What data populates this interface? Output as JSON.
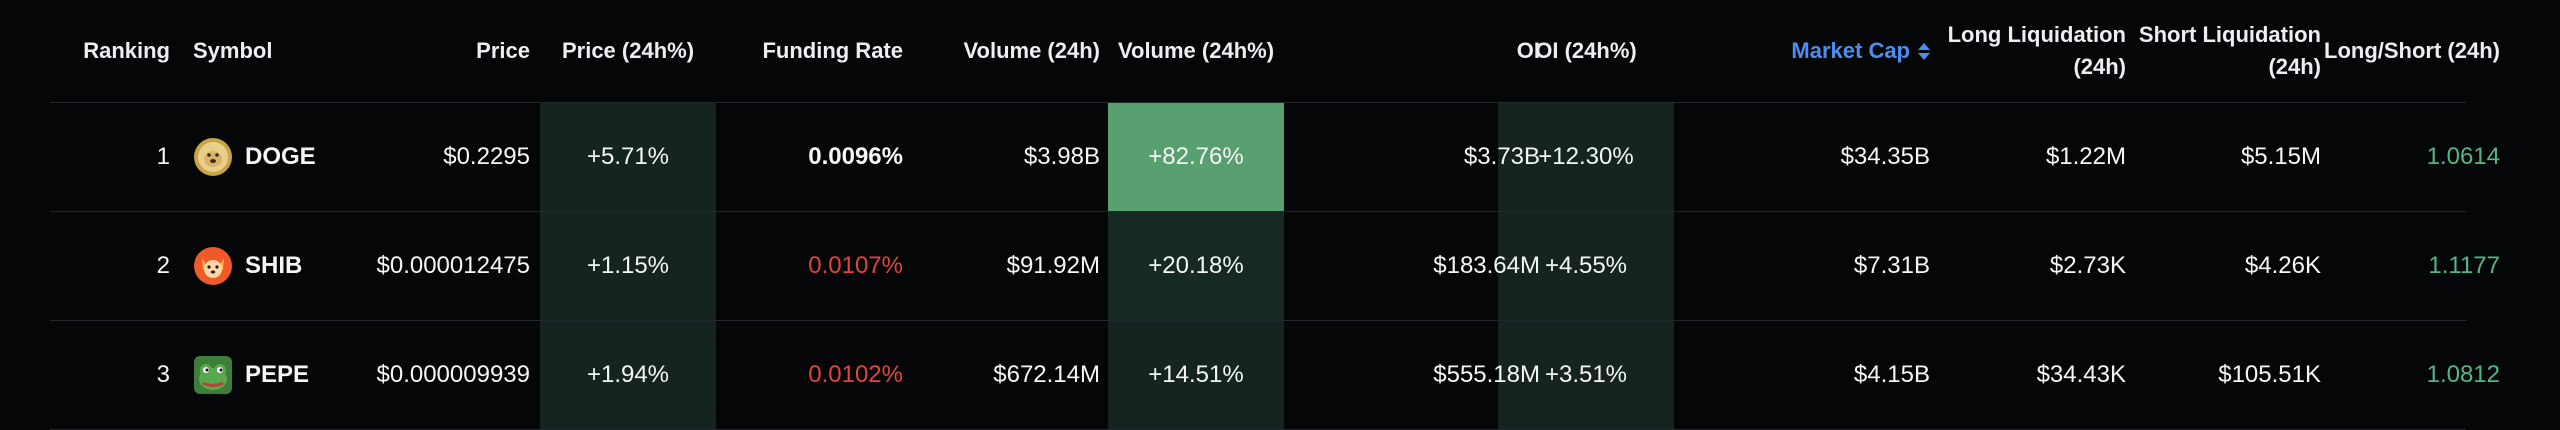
{
  "colors": {
    "background": "#050607",
    "header_text": "#eceff2",
    "accent_blue": "#4d8df0",
    "negative_red": "#e0443e",
    "positive_green": "#4fb887",
    "strong_green_fill": "#58a06f",
    "weak_green_fill": "#15241e"
  },
  "header": {
    "ranking": "Ranking",
    "symbol": "Symbol",
    "price": "Price",
    "price_24h": "Price (24h%)",
    "funding_rate": "Funding Rate",
    "volume_24h": "Volume (24h)",
    "volume_24h_pct": "Volume (24h%)",
    "oi": "OI",
    "oi_24h": "OI (24h%)",
    "market_cap": "Market Cap",
    "long_liq_line1": "Long Liquidation",
    "long_liq_line2": "(24h)",
    "short_liq_line1": "Short Liquidation",
    "short_liq_line2": "(24h)",
    "long_short": "Long/Short (24h)",
    "sort_icon": "sort-up-down-icon"
  },
  "rows": [
    {
      "rank": "1",
      "symbol": "DOGE",
      "icon": "doge-coin-icon",
      "price": "$0.2295",
      "price_change": "+5.71%",
      "funding_rate": "0.0096%",
      "funding_color": "white",
      "volume": "$3.98B",
      "volume_change": "+82.76%",
      "oi": "$3.73B",
      "oi_change": "+12.30%",
      "market_cap": "$34.35B",
      "long_liq": "$1.22M",
      "short_liq": "$5.15M",
      "long_short": "1.0614"
    },
    {
      "rank": "2",
      "symbol": "SHIB",
      "icon": "shib-coin-icon",
      "price": "$0.000012475",
      "price_change": "+1.15%",
      "funding_rate": "0.0107%",
      "funding_color": "red",
      "volume": "$91.92M",
      "volume_change": "+20.18%",
      "oi": "$183.64M",
      "oi_change": "+4.55%",
      "market_cap": "$7.31B",
      "long_liq": "$2.73K",
      "short_liq": "$4.26K",
      "long_short": "1.1177"
    },
    {
      "rank": "3",
      "symbol": "PEPE",
      "icon": "pepe-coin-icon",
      "price": "$0.000009939",
      "price_change": "+1.94%",
      "funding_rate": "0.0102%",
      "funding_color": "red",
      "volume": "$672.14M",
      "volume_change": "+14.51%",
      "oi": "$555.18M",
      "oi_change": "+3.51%",
      "market_cap": "$4.15B",
      "long_liq": "$34.43K",
      "short_liq": "$105.51K",
      "long_short": "1.0812"
    }
  ]
}
